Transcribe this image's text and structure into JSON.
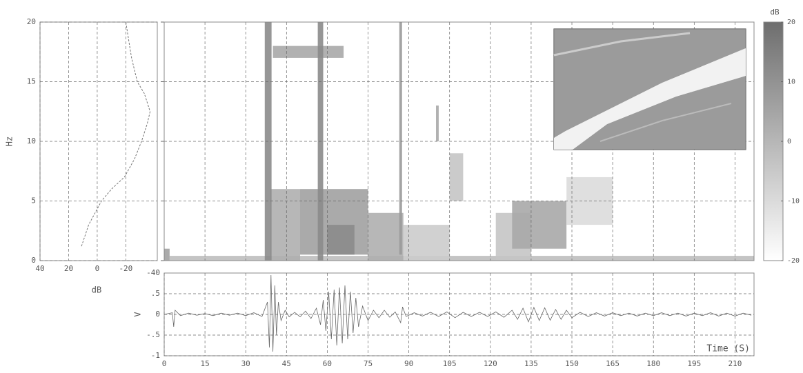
{
  "chart_data": [
    {
      "type": "line",
      "xlabel": "dB",
      "ylabel": "Hz",
      "xlim": [
        40,
        -42
      ],
      "xticks": [
        40,
        20,
        0,
        -20
      ],
      "ylim": [
        0,
        20
      ],
      "yticks": [
        0,
        5,
        10,
        15,
        20
      ],
      "grid": true,
      "color": "#777777",
      "x": [
        11,
        6,
        -3,
        -10,
        -19,
        -26,
        -31,
        -35,
        -37,
        -33,
        -28,
        -24,
        -22,
        -20
      ],
      "values": [
        1.2,
        3,
        5,
        6,
        7,
        8.5,
        10,
        11.5,
        12.5,
        14,
        15,
        17,
        18.5,
        20
      ]
    },
    {
      "type": "heatmap",
      "xlim": [
        0,
        217
      ],
      "xticks": [
        0,
        15,
        30,
        45,
        60,
        75,
        90,
        105,
        120,
        135,
        150,
        165,
        180,
        195,
        210
      ],
      "ylim": [
        0,
        20
      ],
      "yticks": [
        0,
        5,
        10,
        15,
        20
      ],
      "grid": true,
      "patches": [
        {
          "t": [
            2,
            217
          ],
          "f": [
            0,
            0.4
          ],
          "db": -2
        },
        {
          "t": [
            0,
            2
          ],
          "f": [
            0,
            1
          ],
          "db": 6
        },
        {
          "t": [
            39,
            50
          ],
          "f": [
            0,
            6
          ],
          "db": 2
        },
        {
          "t": [
            50,
            75
          ],
          "f": [
            0.5,
            6
          ],
          "db": 6
        },
        {
          "t": [
            60,
            70
          ],
          "f": [
            0.5,
            3
          ],
          "db": 12
        },
        {
          "t": [
            75,
            88
          ],
          "f": [
            0,
            4
          ],
          "db": 2
        },
        {
          "t": [
            88,
            105
          ],
          "f": [
            0,
            3
          ],
          "db": -6
        },
        {
          "t": [
            105,
            110
          ],
          "f": [
            5,
            9
          ],
          "db": -4
        },
        {
          "t": [
            100,
            101
          ],
          "f": [
            10,
            13
          ],
          "db": 4
        },
        {
          "t": [
            122,
            135
          ],
          "f": [
            0,
            4
          ],
          "db": -4
        },
        {
          "t": [
            128,
            148
          ],
          "f": [
            1,
            5
          ],
          "db": 4
        },
        {
          "t": [
            148,
            165
          ],
          "f": [
            3,
            7
          ],
          "db": -10
        },
        {
          "t": [
            40,
            66
          ],
          "f": [
            17,
            18
          ],
          "db": 4
        },
        {
          "t": [
            37,
            39.5
          ],
          "f": [
            0,
            20
          ],
          "db": 12
        },
        {
          "t": [
            56.5,
            58.5
          ],
          "f": [
            0,
            20
          ],
          "db": 12
        },
        {
          "t": [
            86.5,
            87.5
          ],
          "f": [
            0.5,
            20
          ],
          "db": 8
        }
      ]
    },
    {
      "type": "colorbar",
      "label": "dB",
      "zlim": [
        -20,
        20
      ],
      "zticks": [
        20,
        10,
        0,
        -10,
        -20
      ],
      "colors": [
        "#ffffff",
        "#6e6e6e"
      ]
    },
    {
      "type": "line",
      "xlabel": "Time (S)",
      "ylabel": "V",
      "corner_label": "-40",
      "color": "#666666",
      "xlim": [
        0,
        217
      ],
      "xticks": [
        0,
        15,
        30,
        45,
        60,
        75,
        90,
        105,
        120,
        135,
        150,
        165,
        180,
        195,
        210
      ],
      "ylim": [
        -1,
        1
      ],
      "yticks": [
        {
          "value": -1,
          "label": "-1"
        },
        {
          "value": -0.5,
          "label": "-.5"
        },
        0,
        {
          "value": 0.5,
          "label": ".5"
        }
      ],
      "grid": true,
      "x": [
        0,
        3,
        3.5,
        4,
        6,
        9,
        12,
        15,
        18,
        21,
        24,
        27,
        30,
        33,
        36,
        38,
        38.7,
        39.3,
        40,
        40.7,
        41.3,
        42,
        43,
        44.5,
        46,
        48,
        50,
        52,
        54,
        56,
        57.5,
        58.5,
        59.5,
        60.5,
        61.5,
        62.5,
        63.5,
        64.5,
        65.5,
        66.5,
        67.5,
        68.5,
        69.5,
        70.5,
        71.5,
        73,
        75,
        77,
        79,
        81,
        83,
        85,
        87,
        87.7,
        89,
        92,
        95,
        98,
        101,
        104,
        107,
        110,
        113,
        116,
        119,
        122,
        125,
        128,
        130,
        132,
        134,
        136,
        138,
        140,
        142,
        144,
        146,
        148,
        150,
        153,
        156,
        159,
        162,
        165,
        168,
        171,
        174,
        177,
        180,
        183,
        186,
        189,
        192,
        195,
        198,
        201,
        204,
        207,
        210,
        213,
        216
      ],
      "values": [
        0,
        0.04,
        -0.3,
        0.1,
        -0.03,
        0.03,
        -0.02,
        0.02,
        -0.03,
        0.03,
        -0.02,
        0.03,
        -0.03,
        0.04,
        -0.05,
        0.3,
        -0.8,
        0.95,
        -0.9,
        0.7,
        -0.5,
        0.3,
        -0.15,
        0.1,
        -0.06,
        0.05,
        -0.06,
        0.08,
        -0.1,
        0.15,
        -0.25,
        0.35,
        -0.4,
        0.55,
        -0.6,
        0.6,
        -0.75,
        0.65,
        -0.7,
        0.7,
        -0.6,
        0.55,
        -0.45,
        0.4,
        -0.3,
        0.2,
        -0.15,
        0.1,
        -0.08,
        0.1,
        -0.07,
        0.06,
        -0.2,
        0.18,
        -0.05,
        0.04,
        -0.04,
        0.05,
        -0.05,
        0.06,
        -0.08,
        0.05,
        -0.05,
        0.05,
        -0.05,
        0.06,
        -0.07,
        0.1,
        -0.12,
        0.15,
        -0.18,
        0.17,
        -0.15,
        0.16,
        -0.14,
        0.12,
        -0.12,
        0.1,
        -0.08,
        0.05,
        -0.05,
        0.04,
        -0.04,
        0.04,
        -0.03,
        0.03,
        -0.04,
        0.03,
        -0.03,
        0.04,
        -0.03,
        0.03,
        -0.04,
        0.03,
        -0.03,
        0.04,
        -0.04,
        0.03,
        -0.04,
        0.03,
        -0.02
      ]
    }
  ]
}
